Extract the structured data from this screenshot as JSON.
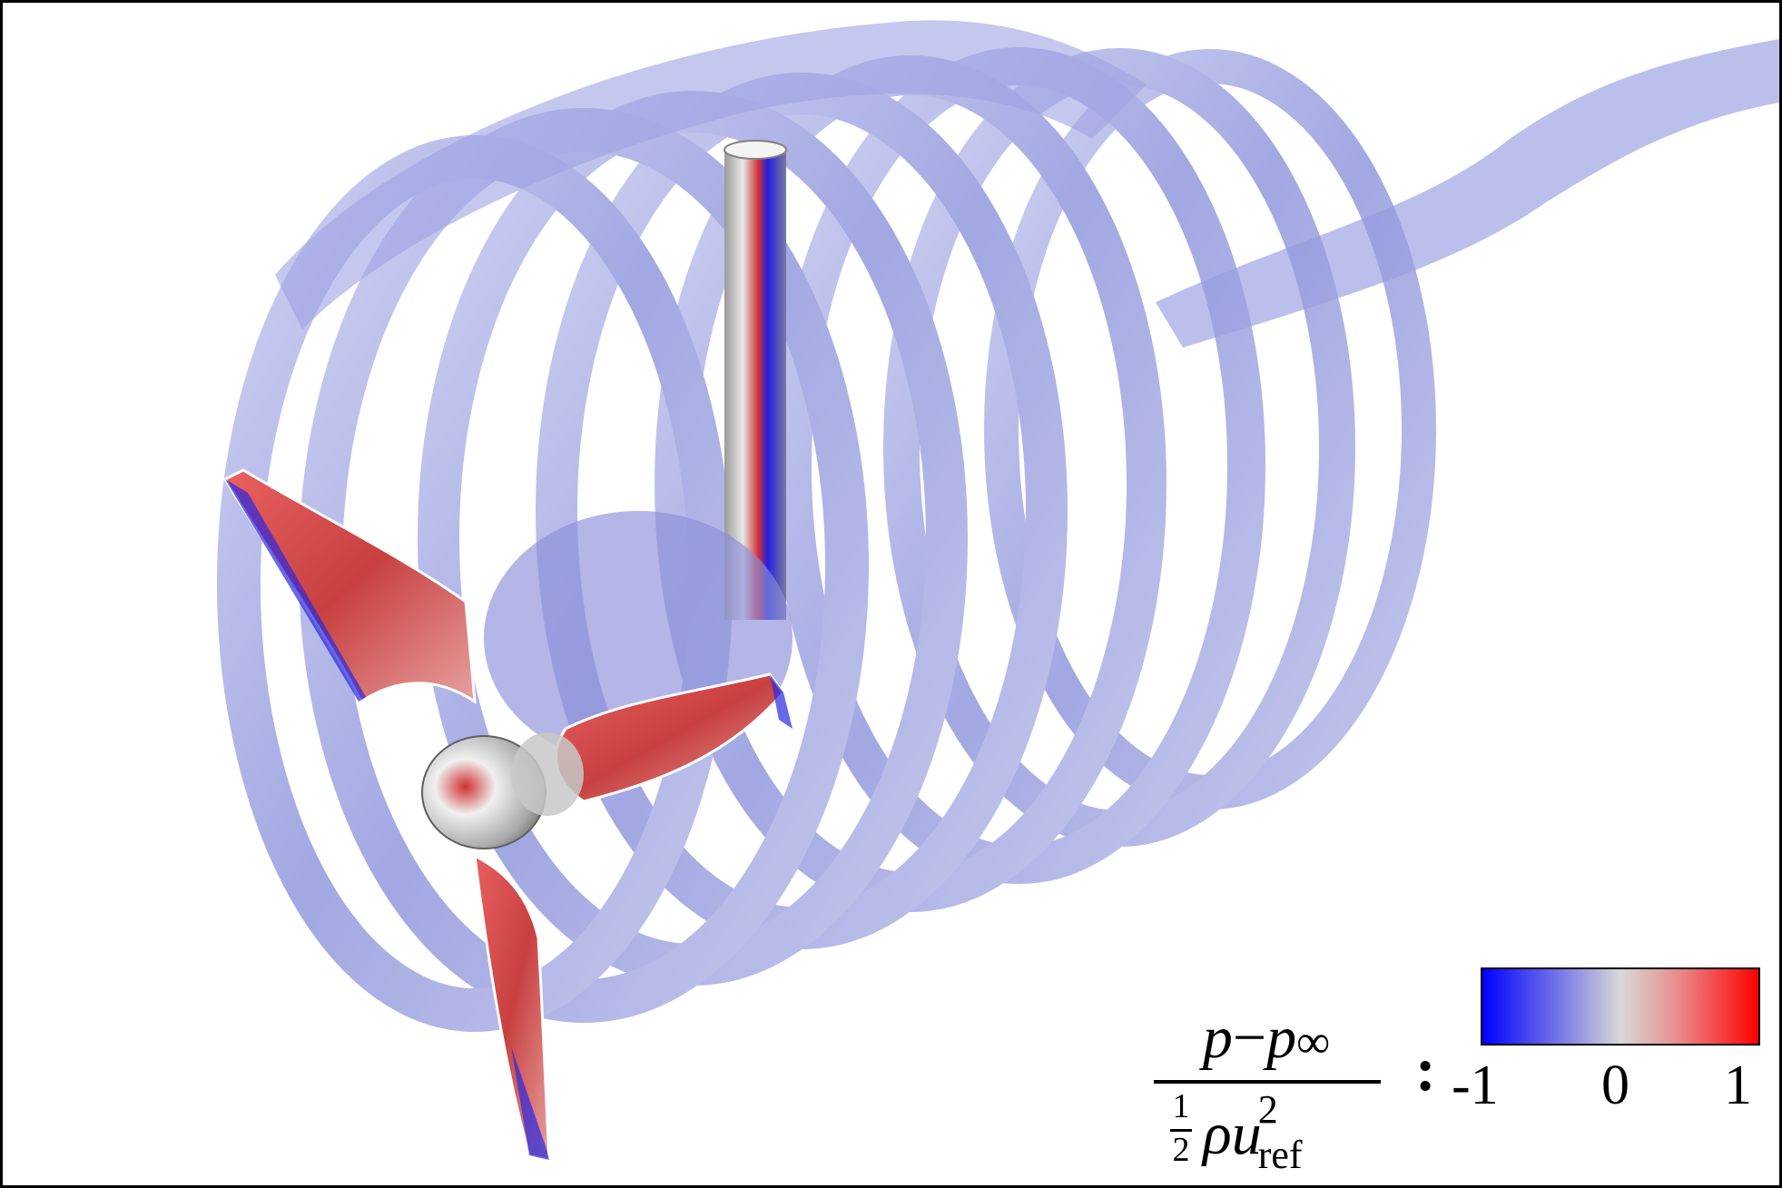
{
  "legend": {
    "formula": {
      "numerator_p": "p",
      "numerator_op": "−",
      "numerator_pinf": "p",
      "numerator_inf": "∞",
      "half_num": "1",
      "half_den": "2",
      "rho": "ρ",
      "u": "u",
      "exponent": "2",
      "subscript": "ref"
    },
    "separator": ":",
    "ticks": [
      "-1",
      "0",
      "1"
    ],
    "colors": {
      "min": "#0000ff",
      "mid": "#d8d8d8",
      "max": "#ff0000"
    }
  },
  "scene": {
    "subject": "wind-turbine",
    "blade_color": "#d94a4a",
    "vortex_color": "#9aa0e0",
    "tower_color": "#c8c8c8"
  }
}
